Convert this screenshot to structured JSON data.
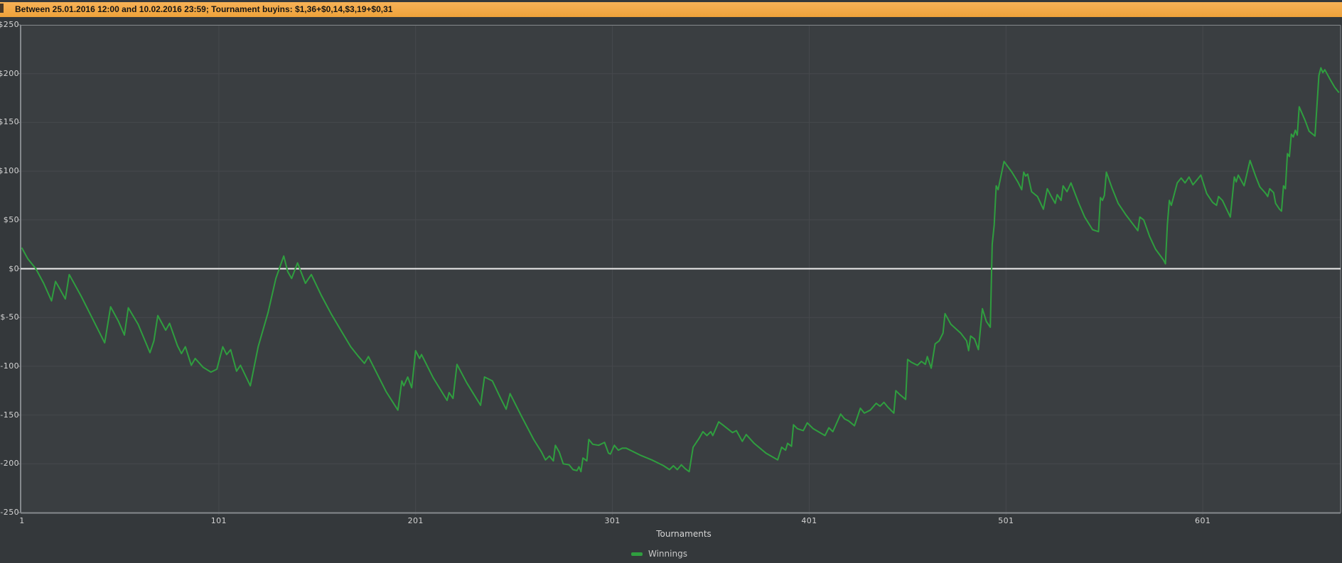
{
  "header": {
    "text": "Between 25.01.2016 12:00 and 10.02.2016 23:59; Tournament buyins: $1,36+$0,14,$3,19+$0,31"
  },
  "colors": {
    "page_bg": "#34383b",
    "plot_bg": "#3a3e41",
    "grid": "#46494d",
    "border": "#85898d",
    "zero_line": "#ededed",
    "series_green": "#2f9e3f",
    "banner_bg": "#f3ab45",
    "banner_text": "#161616",
    "label_text": "#d4d4d4"
  },
  "chart_data": {
    "type": "line",
    "title": "",
    "xlabel": "Tournaments",
    "ylabel": "",
    "grid": true,
    "zero_line": true,
    "legend_position": "bottom-center",
    "xlim": [
      1,
      671
    ],
    "ylim": [
      -250,
      250
    ],
    "x_ticks": [
      "1",
      "101",
      "201",
      "301",
      "401",
      "501",
      "601"
    ],
    "x_tick_values": [
      1,
      101,
      201,
      301,
      401,
      501,
      601
    ],
    "y_ticks": [
      "$250",
      "$200",
      "$150",
      "$100",
      "$50",
      "$0",
      "$-50",
      "$-100",
      "$-150",
      "$-200",
      "$-250"
    ],
    "y_tick_values": [
      250,
      200,
      150,
      100,
      50,
      0,
      -50,
      -100,
      -150,
      -200,
      -250
    ],
    "series": [
      {
        "name": "Winnings",
        "color": "#2f9e3f",
        "points": [
          [
            1,
            21
          ],
          [
            4,
            10
          ],
          [
            8,
            0
          ],
          [
            12,
            -15
          ],
          [
            16,
            -33
          ],
          [
            18,
            -13
          ],
          [
            20,
            -20
          ],
          [
            23,
            -31
          ],
          [
            25,
            -6
          ],
          [
            31,
            -28
          ],
          [
            37,
            -52
          ],
          [
            43,
            -76
          ],
          [
            46,
            -39
          ],
          [
            50,
            -54
          ],
          [
            53,
            -68
          ],
          [
            55,
            -40
          ],
          [
            60,
            -57
          ],
          [
            66,
            -86
          ],
          [
            68,
            -74
          ],
          [
            70,
            -48
          ],
          [
            74,
            -63
          ],
          [
            76,
            -56
          ],
          [
            80,
            -79
          ],
          [
            82,
            -87
          ],
          [
            84,
            -80
          ],
          [
            87,
            -99
          ],
          [
            89,
            -92
          ],
          [
            93,
            -101
          ],
          [
            97,
            -106
          ],
          [
            100,
            -103
          ],
          [
            103,
            -80
          ],
          [
            105,
            -88
          ],
          [
            107,
            -83
          ],
          [
            110,
            -105
          ],
          [
            112,
            -99
          ],
          [
            117,
            -120
          ],
          [
            121,
            -80
          ],
          [
            126,
            -45
          ],
          [
            130,
            -10
          ],
          [
            134,
            13
          ],
          [
            136,
            -3
          ],
          [
            138,
            -10
          ],
          [
            141,
            6
          ],
          [
            145,
            -15
          ],
          [
            148,
            -6
          ],
          [
            153,
            -27
          ],
          [
            158,
            -46
          ],
          [
            163,
            -63
          ],
          [
            168,
            -80
          ],
          [
            172,
            -90
          ],
          [
            175,
            -97
          ],
          [
            177,
            -90
          ],
          [
            182,
            -110
          ],
          [
            186,
            -126
          ],
          [
            192,
            -145
          ],
          [
            194,
            -115
          ],
          [
            195,
            -120
          ],
          [
            197,
            -111
          ],
          [
            199,
            -122
          ],
          [
            201,
            -84
          ],
          [
            203,
            -92
          ],
          [
            204,
            -88
          ],
          [
            210,
            -112
          ],
          [
            217,
            -135
          ],
          [
            218,
            -127
          ],
          [
            220,
            -133
          ],
          [
            222,
            -98
          ],
          [
            227,
            -117
          ],
          [
            234,
            -140
          ],
          [
            236,
            -111
          ],
          [
            240,
            -115
          ],
          [
            244,
            -132
          ],
          [
            247,
            -144
          ],
          [
            249,
            -128
          ],
          [
            255,
            -152
          ],
          [
            261,
            -175
          ],
          [
            265,
            -188
          ],
          [
            267,
            -196
          ],
          [
            269,
            -192
          ],
          [
            271,
            -197
          ],
          [
            272,
            -181
          ],
          [
            274,
            -188
          ],
          [
            276,
            -200
          ],
          [
            279,
            -201
          ],
          [
            281,
            -206
          ],
          [
            283,
            -207
          ],
          [
            284,
            -203
          ],
          [
            285,
            -208
          ],
          [
            286,
            -194
          ],
          [
            288,
            -197
          ],
          [
            289,
            -175
          ],
          [
            291,
            -180
          ],
          [
            294,
            -181
          ],
          [
            297,
            -178
          ],
          [
            299,
            -189
          ],
          [
            300,
            -190
          ],
          [
            302,
            -181
          ],
          [
            304,
            -186
          ],
          [
            306,
            -184
          ],
          [
            308,
            -184
          ],
          [
            311,
            -187
          ],
          [
            315,
            -191
          ],
          [
            321,
            -196
          ],
          [
            324,
            -199
          ],
          [
            327,
            -202
          ],
          [
            330,
            -206
          ],
          [
            332,
            -202
          ],
          [
            334,
            -206
          ],
          [
            336,
            -201
          ],
          [
            338,
            -205
          ],
          [
            340,
            -208
          ],
          [
            342,
            -183
          ],
          [
            345,
            -174
          ],
          [
            347,
            -167
          ],
          [
            349,
            -171
          ],
          [
            351,
            -167
          ],
          [
            352,
            -171
          ],
          [
            355,
            -157
          ],
          [
            357,
            -160
          ],
          [
            362,
            -168
          ],
          [
            364,
            -166
          ],
          [
            367,
            -177
          ],
          [
            369,
            -170
          ],
          [
            373,
            -179
          ],
          [
            379,
            -189
          ],
          [
            385,
            -196
          ],
          [
            387,
            -183
          ],
          [
            389,
            -186
          ],
          [
            390,
            -179
          ],
          [
            392,
            -182
          ],
          [
            393,
            -160
          ],
          [
            395,
            -164
          ],
          [
            398,
            -166
          ],
          [
            400,
            -158
          ],
          [
            403,
            -164
          ],
          [
            409,
            -171
          ],
          [
            411,
            -163
          ],
          [
            413,
            -167
          ],
          [
            417,
            -149
          ],
          [
            419,
            -154
          ],
          [
            421,
            -156
          ],
          [
            424,
            -161
          ],
          [
            427,
            -143
          ],
          [
            429,
            -148
          ],
          [
            432,
            -145
          ],
          [
            435,
            -138
          ],
          [
            437,
            -141
          ],
          [
            439,
            -137
          ],
          [
            441,
            -142
          ],
          [
            444,
            -148
          ],
          [
            445,
            -125
          ],
          [
            447,
            -129
          ],
          [
            450,
            -134
          ],
          [
            451,
            -93
          ],
          [
            453,
            -96
          ],
          [
            456,
            -99
          ],
          [
            458,
            -95
          ],
          [
            460,
            -98
          ],
          [
            461,
            -90
          ],
          [
            463,
            -102
          ],
          [
            465,
            -77
          ],
          [
            467,
            -74
          ],
          [
            469,
            -66
          ],
          [
            470,
            -46
          ],
          [
            473,
            -57
          ],
          [
            478,
            -66
          ],
          [
            481,
            -74
          ],
          [
            482,
            -84
          ],
          [
            483,
            -69
          ],
          [
            485,
            -72
          ],
          [
            487,
            -83
          ],
          [
            489,
            -41
          ],
          [
            491,
            -54
          ],
          [
            493,
            -60
          ],
          [
            494,
            25
          ],
          [
            495,
            45
          ],
          [
            496,
            85
          ],
          [
            497,
            81
          ],
          [
            500,
            110
          ],
          [
            504,
            99
          ],
          [
            507,
            89
          ],
          [
            509,
            81
          ],
          [
            510,
            99
          ],
          [
            511,
            95
          ],
          [
            512,
            97
          ],
          [
            514,
            79
          ],
          [
            517,
            74
          ],
          [
            520,
            61
          ],
          [
            522,
            82
          ],
          [
            524,
            74
          ],
          [
            526,
            67
          ],
          [
            527,
            76
          ],
          [
            529,
            70
          ],
          [
            530,
            85
          ],
          [
            532,
            79
          ],
          [
            534,
            88
          ],
          [
            538,
            67
          ],
          [
            541,
            53
          ],
          [
            545,
            40
          ],
          [
            548,
            38
          ],
          [
            549,
            73
          ],
          [
            550,
            70
          ],
          [
            551,
            75
          ],
          [
            552,
            99
          ],
          [
            555,
            82
          ],
          [
            558,
            67
          ],
          [
            562,
            55
          ],
          [
            565,
            47
          ],
          [
            568,
            39
          ],
          [
            569,
            53
          ],
          [
            571,
            50
          ],
          [
            574,
            33
          ],
          [
            577,
            20
          ],
          [
            581,
            9
          ],
          [
            582,
            5
          ],
          [
            583,
            45
          ],
          [
            584,
            70
          ],
          [
            585,
            65
          ],
          [
            588,
            88
          ],
          [
            590,
            93
          ],
          [
            592,
            88
          ],
          [
            594,
            94
          ],
          [
            596,
            86
          ],
          [
            598,
            91
          ],
          [
            600,
            96
          ],
          [
            603,
            77
          ],
          [
            606,
            68
          ],
          [
            608,
            65
          ],
          [
            609,
            74
          ],
          [
            611,
            70
          ],
          [
            615,
            53
          ],
          [
            617,
            94
          ],
          [
            618,
            89
          ],
          [
            619,
            96
          ],
          [
            622,
            85
          ],
          [
            625,
            111
          ],
          [
            628,
            94
          ],
          [
            630,
            84
          ],
          [
            633,
            77
          ],
          [
            634,
            74
          ],
          [
            635,
            82
          ],
          [
            637,
            78
          ],
          [
            638,
            67
          ],
          [
            640,
            61
          ],
          [
            641,
            59
          ],
          [
            642,
            85
          ],
          [
            643,
            82
          ],
          [
            644,
            118
          ],
          [
            645,
            115
          ],
          [
            646,
            138
          ],
          [
            647,
            135
          ],
          [
            648,
            142
          ],
          [
            649,
            137
          ],
          [
            650,
            166
          ],
          [
            653,
            152
          ],
          [
            655,
            141
          ],
          [
            658,
            136
          ],
          [
            660,
            198
          ],
          [
            661,
            206
          ],
          [
            662,
            201
          ],
          [
            663,
            204
          ],
          [
            666,
            193
          ],
          [
            668,
            186
          ],
          [
            670,
            181
          ]
        ]
      }
    ]
  }
}
